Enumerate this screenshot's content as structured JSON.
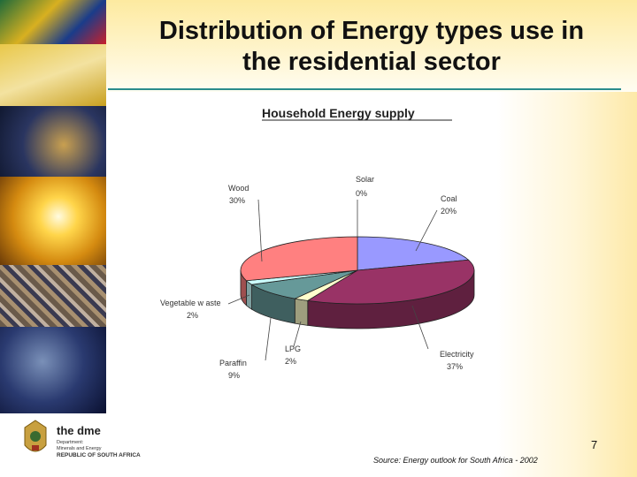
{
  "slide": {
    "title_line1": "Distribution of Energy types use in",
    "title_line2": "the residential sector",
    "page_number": "7",
    "source": "Source: Energy outlook for South Africa - 2002"
  },
  "logo": {
    "name": "the dme",
    "sub_line1": "Department:",
    "sub_line2": "Minerals and Energy",
    "country": "REPUBLIC OF SOUTH AFRICA"
  },
  "colors": {
    "title_rule": "#2a8c8c"
  },
  "chart_data": {
    "type": "pie",
    "title": "Household Energy supply",
    "unit": "%",
    "slices": [
      {
        "label": "Solar",
        "value": 0,
        "value_label": "0%",
        "color": "#ffffc8"
      },
      {
        "label": "Coal",
        "value": 20,
        "value_label": "20%",
        "color": "#9999ff"
      },
      {
        "label": "Electricity",
        "label_text": "Electricity",
        "value": 37,
        "value_label": "37%",
        "color": "#993366"
      },
      {
        "label": "LPG",
        "value": 2,
        "value_label": "2%",
        "color": "#ffffcc"
      },
      {
        "label": "Paraffin",
        "value": 9,
        "value_label": "9%",
        "color": "#669999"
      },
      {
        "label": "Vegetable waste",
        "label_text": "Vegetable w aste",
        "value": 2,
        "value_label": "2%",
        "color": "#ccffff"
      },
      {
        "label": "Wood",
        "value": 30,
        "value_label": "30%",
        "color": "#ff8080"
      }
    ],
    "legend": "none",
    "three_d": true
  }
}
